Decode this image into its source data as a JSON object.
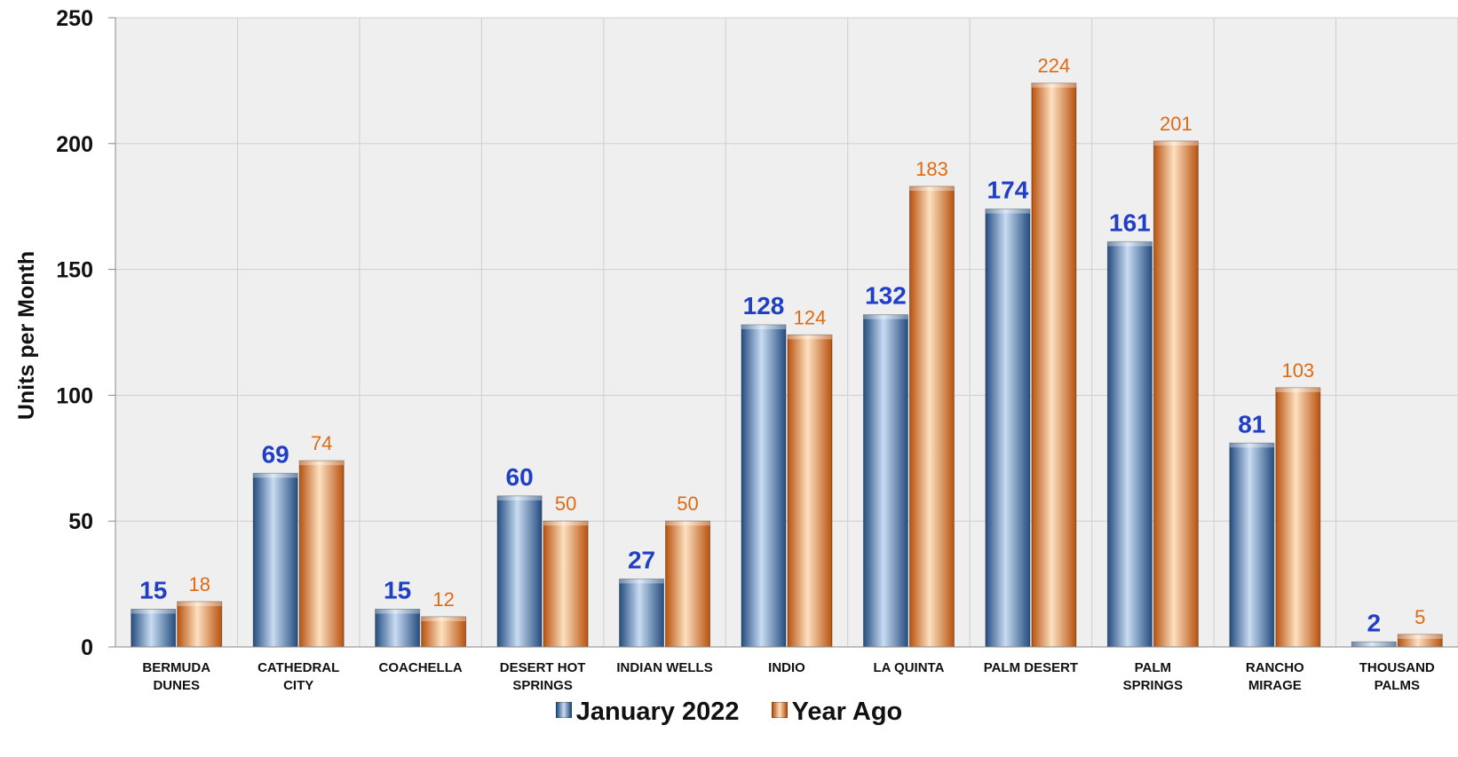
{
  "chart_data": {
    "type": "bar",
    "title": "",
    "xlabel": "",
    "ylabel": "Units per Month",
    "ylim": [
      0,
      250
    ],
    "y_ticks": [
      0,
      50,
      100,
      150,
      200,
      250
    ],
    "grid": true,
    "legend_placement": "bottom",
    "categories": [
      [
        "BERMUDA",
        "DUNES"
      ],
      [
        "CATHEDRAL",
        "CITY"
      ],
      [
        "COACHELLA"
      ],
      [
        "DESERT HOT",
        "SPRINGS"
      ],
      [
        "INDIAN WELLS"
      ],
      [
        "INDIO"
      ],
      [
        "LA QUINTA"
      ],
      [
        "PALM DESERT"
      ],
      [
        "PALM",
        "SPRINGS"
      ],
      [
        "RANCHO",
        "MIRAGE"
      ],
      [
        "THOUSAND",
        "PALMS"
      ]
    ],
    "series": [
      {
        "name": "January 2022",
        "values": [
          15,
          69,
          15,
          60,
          27,
          128,
          132,
          174,
          161,
          81,
          2
        ],
        "color": "#3a6aa6",
        "label_color": "#1f3fc4"
      },
      {
        "name": "Year Ago",
        "values": [
          18,
          74,
          12,
          50,
          50,
          124,
          183,
          224,
          201,
          103,
          5
        ],
        "color": "#e8731c",
        "label_color": "#e06a12"
      }
    ]
  },
  "legend": {
    "items": [
      {
        "label": "January 2022",
        "color": "#3a6aa6"
      },
      {
        "label": "Year Ago",
        "color": "#e8731c"
      }
    ]
  }
}
